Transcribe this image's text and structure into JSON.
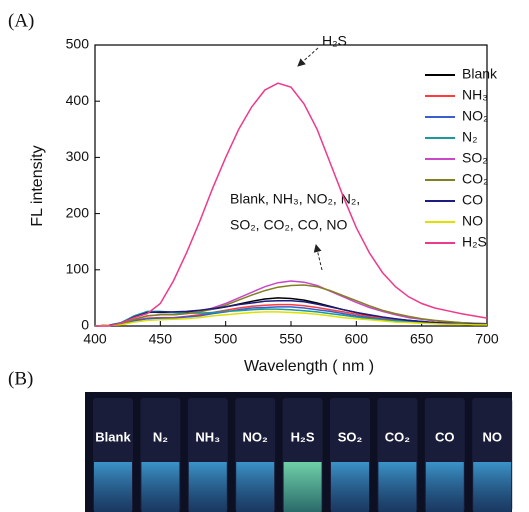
{
  "panels": {
    "a": "(A)",
    "b": "(B)"
  },
  "chart_data": {
    "type": "line",
    "xlabel": "Wavelength ( nm )",
    "ylabel": "FL  intensity",
    "xlim": [
      400,
      700
    ],
    "ylim": [
      0,
      500
    ],
    "xticks": [
      400,
      450,
      500,
      550,
      600,
      650,
      700
    ],
    "yticks": [
      0,
      100,
      200,
      300,
      400,
      500
    ],
    "annotations": [
      "H₂S",
      "Blank, NH₃, NO₂, N₂,",
      "SO₂, CO₂, CO, NO"
    ],
    "x": [
      400,
      410,
      420,
      430,
      440,
      450,
      460,
      470,
      480,
      490,
      500,
      510,
      520,
      530,
      540,
      550,
      560,
      570,
      580,
      590,
      600,
      610,
      620,
      630,
      640,
      650,
      660,
      670,
      680,
      690,
      700
    ],
    "series": [
      {
        "name": "Blank",
        "color": "#000000",
        "values": [
          0,
          1,
          5,
          18,
          25,
          24,
          24,
          25,
          27,
          30,
          34,
          39,
          44,
          48,
          50,
          49,
          46,
          41,
          35,
          29,
          24,
          19,
          15,
          12,
          10,
          8,
          6,
          5,
          4,
          3,
          3
        ]
      },
      {
        "name": "NH₃",
        "color": "#ff3b3b",
        "values": [
          0,
          1,
          3,
          10,
          14,
          15,
          15,
          17,
          20,
          24,
          28,
          32,
          35,
          37,
          38,
          38,
          36,
          33,
          29,
          25,
          21,
          17,
          14,
          11,
          9,
          7,
          5,
          4,
          3,
          3,
          2
        ]
      },
      {
        "name": "NO₂",
        "color": "#3a5fcd",
        "values": [
          0,
          1,
          3,
          9,
          13,
          14,
          14,
          16,
          18,
          22,
          25,
          29,
          32,
          33,
          34,
          34,
          32,
          29,
          26,
          22,
          18,
          15,
          12,
          10,
          8,
          6,
          5,
          4,
          3,
          2,
          2
        ]
      },
      {
        "name": "N₂",
        "color": "#1a9a9a",
        "values": [
          0,
          1,
          6,
          18,
          26,
          26,
          24,
          23,
          23,
          24,
          26,
          27,
          29,
          30,
          30,
          29,
          27,
          25,
          22,
          19,
          16,
          13,
          11,
          9,
          7,
          6,
          5,
          4,
          3,
          3,
          2
        ]
      },
      {
        "name": "SO₂",
        "color": "#c848c8",
        "values": [
          0,
          1,
          4,
          12,
          18,
          20,
          20,
          22,
          26,
          32,
          40,
          50,
          60,
          70,
          77,
          80,
          78,
          72,
          62,
          52,
          42,
          33,
          26,
          20,
          15,
          12,
          9,
          7,
          6,
          5,
          4
        ]
      },
      {
        "name": "CO₂",
        "color": "#808020",
        "values": [
          0,
          1,
          4,
          12,
          18,
          20,
          20,
          22,
          25,
          30,
          37,
          46,
          55,
          63,
          69,
          72,
          73,
          70,
          63,
          54,
          45,
          36,
          28,
          22,
          17,
          13,
          10,
          8,
          6,
          5,
          4
        ]
      },
      {
        "name": "CO",
        "color": "#1c1c80",
        "values": [
          0,
          1,
          5,
          16,
          24,
          25,
          25,
          26,
          28,
          31,
          34,
          38,
          41,
          44,
          45,
          45,
          43,
          39,
          34,
          29,
          24,
          20,
          16,
          13,
          10,
          8,
          6,
          5,
          4,
          3,
          3
        ]
      },
      {
        "name": "NO",
        "color": "#e0e000",
        "values": [
          0,
          1,
          2,
          7,
          10,
          11,
          12,
          13,
          15,
          18,
          20,
          22,
          24,
          25,
          25,
          24,
          23,
          21,
          18,
          15,
          13,
          11,
          9,
          7,
          6,
          5,
          4,
          3,
          3,
          2,
          2
        ]
      },
      {
        "name": "H₂S",
        "color": "#ee3a8c",
        "values": [
          0,
          0,
          5,
          15,
          22,
          40,
          80,
          130,
          185,
          245,
          300,
          350,
          390,
          420,
          432,
          425,
          395,
          350,
          290,
          230,
          175,
          130,
          95,
          70,
          52,
          40,
          32,
          27,
          22,
          18,
          14
        ]
      }
    ]
  },
  "photo_labels": [
    "Blank",
    "N₂",
    "NH₃",
    "NO₂",
    "H₂S",
    "SO₂",
    "CO₂",
    "CO",
    "NO"
  ]
}
